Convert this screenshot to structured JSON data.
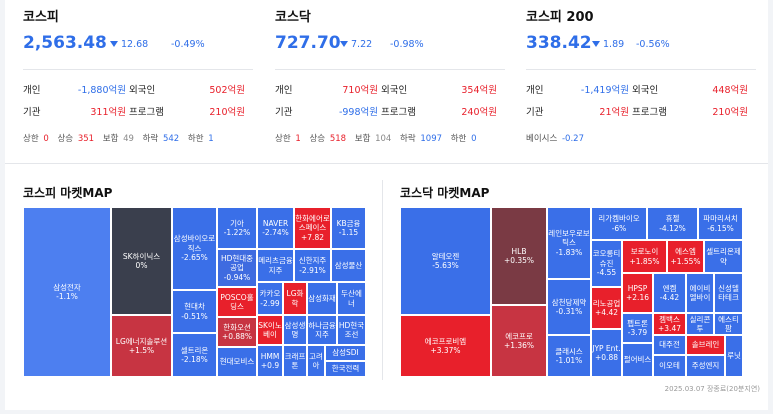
{
  "kospi": {
    "title": "코스피",
    "value": "2,563.48",
    "change": "12.68",
    "rate": "-0.49%",
    "indiv_label": "개인",
    "indiv": "-1,880억원",
    "foreign_label": "외국인",
    "foreign": "502억원",
    "inst_label": "기관",
    "inst": "311억원",
    "program_label": "프로그램",
    "program": "210억원",
    "upper_label": "상한",
    "upper": "0",
    "up_label": "상승",
    "up": "351",
    "flat_label": "보합",
    "flat": "49",
    "down_label": "하락",
    "down": "542",
    "lower_label": "하한",
    "lower": "1"
  },
  "kosdaq": {
    "title": "코스닥",
    "value": "727.70",
    "change": "7.22",
    "rate": "-0.98%",
    "indiv_label": "개인",
    "indiv": "710억원",
    "foreign_label": "외국인",
    "foreign": "354억원",
    "inst_label": "기관",
    "inst": "-998억원",
    "program_label": "프로그램",
    "program": "240억원",
    "upper_label": "상한",
    "upper": "1",
    "up_label": "상승",
    "up": "518",
    "flat_label": "보합",
    "flat": "104",
    "down_label": "하락",
    "down": "1097",
    "lower_label": "하한",
    "lower": "0"
  },
  "kospi200": {
    "title": "코스피 200",
    "value": "338.42",
    "change": "1.89",
    "rate": "-0.56%",
    "indiv_label": "개인",
    "indiv": "-1,419억원",
    "foreign_label": "외국인",
    "foreign": "448억원",
    "inst_label": "기관",
    "inst": "21억원",
    "program_label": "프로그램",
    "program": "210억원",
    "basis_label": "베이시스",
    "basis": "-0.27"
  },
  "kospi_map": {
    "title": "코스피 마켓MAP",
    "tiles": [
      {
        "n": "삼성전자",
        "p": "-1.1%"
      },
      {
        "n": "SK하이닉스",
        "p": "0%"
      },
      {
        "n": "LG에너지솔루션",
        "p": "+1.5%"
      },
      {
        "n": "삼성바이오로직스",
        "p": "-2.65%"
      },
      {
        "n": "현대차",
        "p": "-0.51%"
      },
      {
        "n": "셀트리온",
        "p": "-2.18%"
      },
      {
        "n": "기아",
        "p": "-1.22%"
      },
      {
        "n": "HD현대중공업",
        "p": "-0.94%"
      },
      {
        "n": "POSCO홀딩스",
        "p": ""
      },
      {
        "n": "한화오션",
        "p": "+0.88%"
      },
      {
        "n": "현대모비스",
        "p": ""
      },
      {
        "n": "NAVER",
        "p": "-2.74%"
      },
      {
        "n": "메리츠금융지주",
        "p": ""
      },
      {
        "n": "카카오",
        "p": "-2.99"
      },
      {
        "n": "SK이노베이",
        "p": ""
      },
      {
        "n": "HMM",
        "p": "+0.9"
      },
      {
        "n": "한화에어로스페이스",
        "p": "+7.82"
      },
      {
        "n": "신한지주",
        "p": "-2.91%"
      },
      {
        "n": "LG화학",
        "p": ""
      },
      {
        "n": "삼성생명",
        "p": ""
      },
      {
        "n": "크래프톤",
        "p": ""
      },
      {
        "n": "KB금융",
        "p": "-1.15"
      },
      {
        "n": "삼성물산",
        "p": ""
      },
      {
        "n": "삼성화재",
        "p": ""
      },
      {
        "n": "두산에너",
        "p": ""
      },
      {
        "n": "하나금융지주",
        "p": ""
      },
      {
        "n": "HD현국조선",
        "p": ""
      },
      {
        "n": "고려아",
        "p": ""
      },
      {
        "n": "삼성SDI",
        "p": ""
      },
      {
        "n": "한국전력",
        "p": ""
      }
    ]
  },
  "kosdaq_map": {
    "title": "코스닥 마켓MAP",
    "tiles": [
      {
        "n": "알테오젠",
        "p": "-5.63%"
      },
      {
        "n": "HLB",
        "p": "+0.35%"
      },
      {
        "n": "에코프로비엠",
        "p": "+3.37%"
      },
      {
        "n": "에코프로",
        "p": "+1.36%"
      },
      {
        "n": "레인보우로보틱스",
        "p": "-1.83%"
      },
      {
        "n": "삼천당제약",
        "p": "-0.31%"
      },
      {
        "n": "클래시스",
        "p": "-1.01%"
      },
      {
        "n": "리가켐바이오",
        "p": "-6%"
      },
      {
        "n": "코오롱티슈진",
        "p": "-4.55"
      },
      {
        "n": "리노공업",
        "p": "+4.42"
      },
      {
        "n": "JYP Ent.",
        "p": "+0.88"
      },
      {
        "n": "휴젤",
        "p": "-4.12%"
      },
      {
        "n": "파마리서치",
        "p": "-6.15%"
      },
      {
        "n": "보로노이",
        "p": "+1.85%"
      },
      {
        "n": "에스엠",
        "p": "+1.55%"
      },
      {
        "n": "셀트리온제약",
        "p": ""
      },
      {
        "n": "HPSP",
        "p": "+2.16"
      },
      {
        "n": "엔켐",
        "p": "-4.42"
      },
      {
        "n": "에이비엘바이",
        "p": ""
      },
      {
        "n": "신성델타테크",
        "p": ""
      },
      {
        "n": "펩트론",
        "p": "-3.79"
      },
      {
        "n": "펄어비스",
        "p": ""
      },
      {
        "n": "젬백스",
        "p": "+3.47"
      },
      {
        "n": "실리콘투",
        "p": ""
      },
      {
        "n": "에스티팜",
        "p": ""
      },
      {
        "n": "대주전",
        "p": ""
      },
      {
        "n": "솔브레인",
        "p": ""
      },
      {
        "n": "루닛",
        "p": ""
      },
      {
        "n": "이오테",
        "p": ""
      },
      {
        "n": "주성엔지",
        "p": ""
      }
    ]
  },
  "footnote": "2025.03.07 장종료(20분지연)"
}
